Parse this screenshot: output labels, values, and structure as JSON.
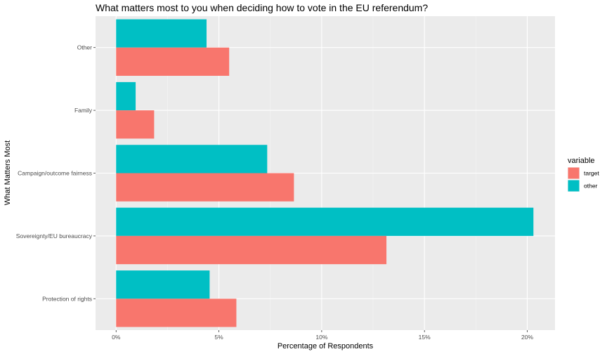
{
  "chart_data": {
    "type": "bar",
    "orientation": "horizontal",
    "title": "What matters most to you when deciding how to vote in the EU referendum?",
    "xlabel": "Percentage of Respondents",
    "ylabel": "What Matters Most",
    "categories": [
      "Protection of rights",
      "Sovereignty/EU bureaucracy",
      "Campaign/outcome fairness",
      "Family",
      "Other"
    ],
    "series": [
      {
        "name": "target",
        "color": "#F8766D",
        "values": [
          5.85,
          13.15,
          8.65,
          1.85,
          5.5
        ]
      },
      {
        "name": "other",
        "color": "#00BFC4",
        "values": [
          4.55,
          20.3,
          7.35,
          0.95,
          4.4
        ]
      }
    ],
    "x_ticks": [
      0,
      5,
      10,
      15,
      20
    ],
    "x_tick_labels": [
      "0%",
      "5%",
      "10%",
      "15%",
      "20%"
    ],
    "xlim": [
      -1.0,
      21.35
    ],
    "grid": true,
    "legend": {
      "title": "variable",
      "position": "right"
    }
  }
}
